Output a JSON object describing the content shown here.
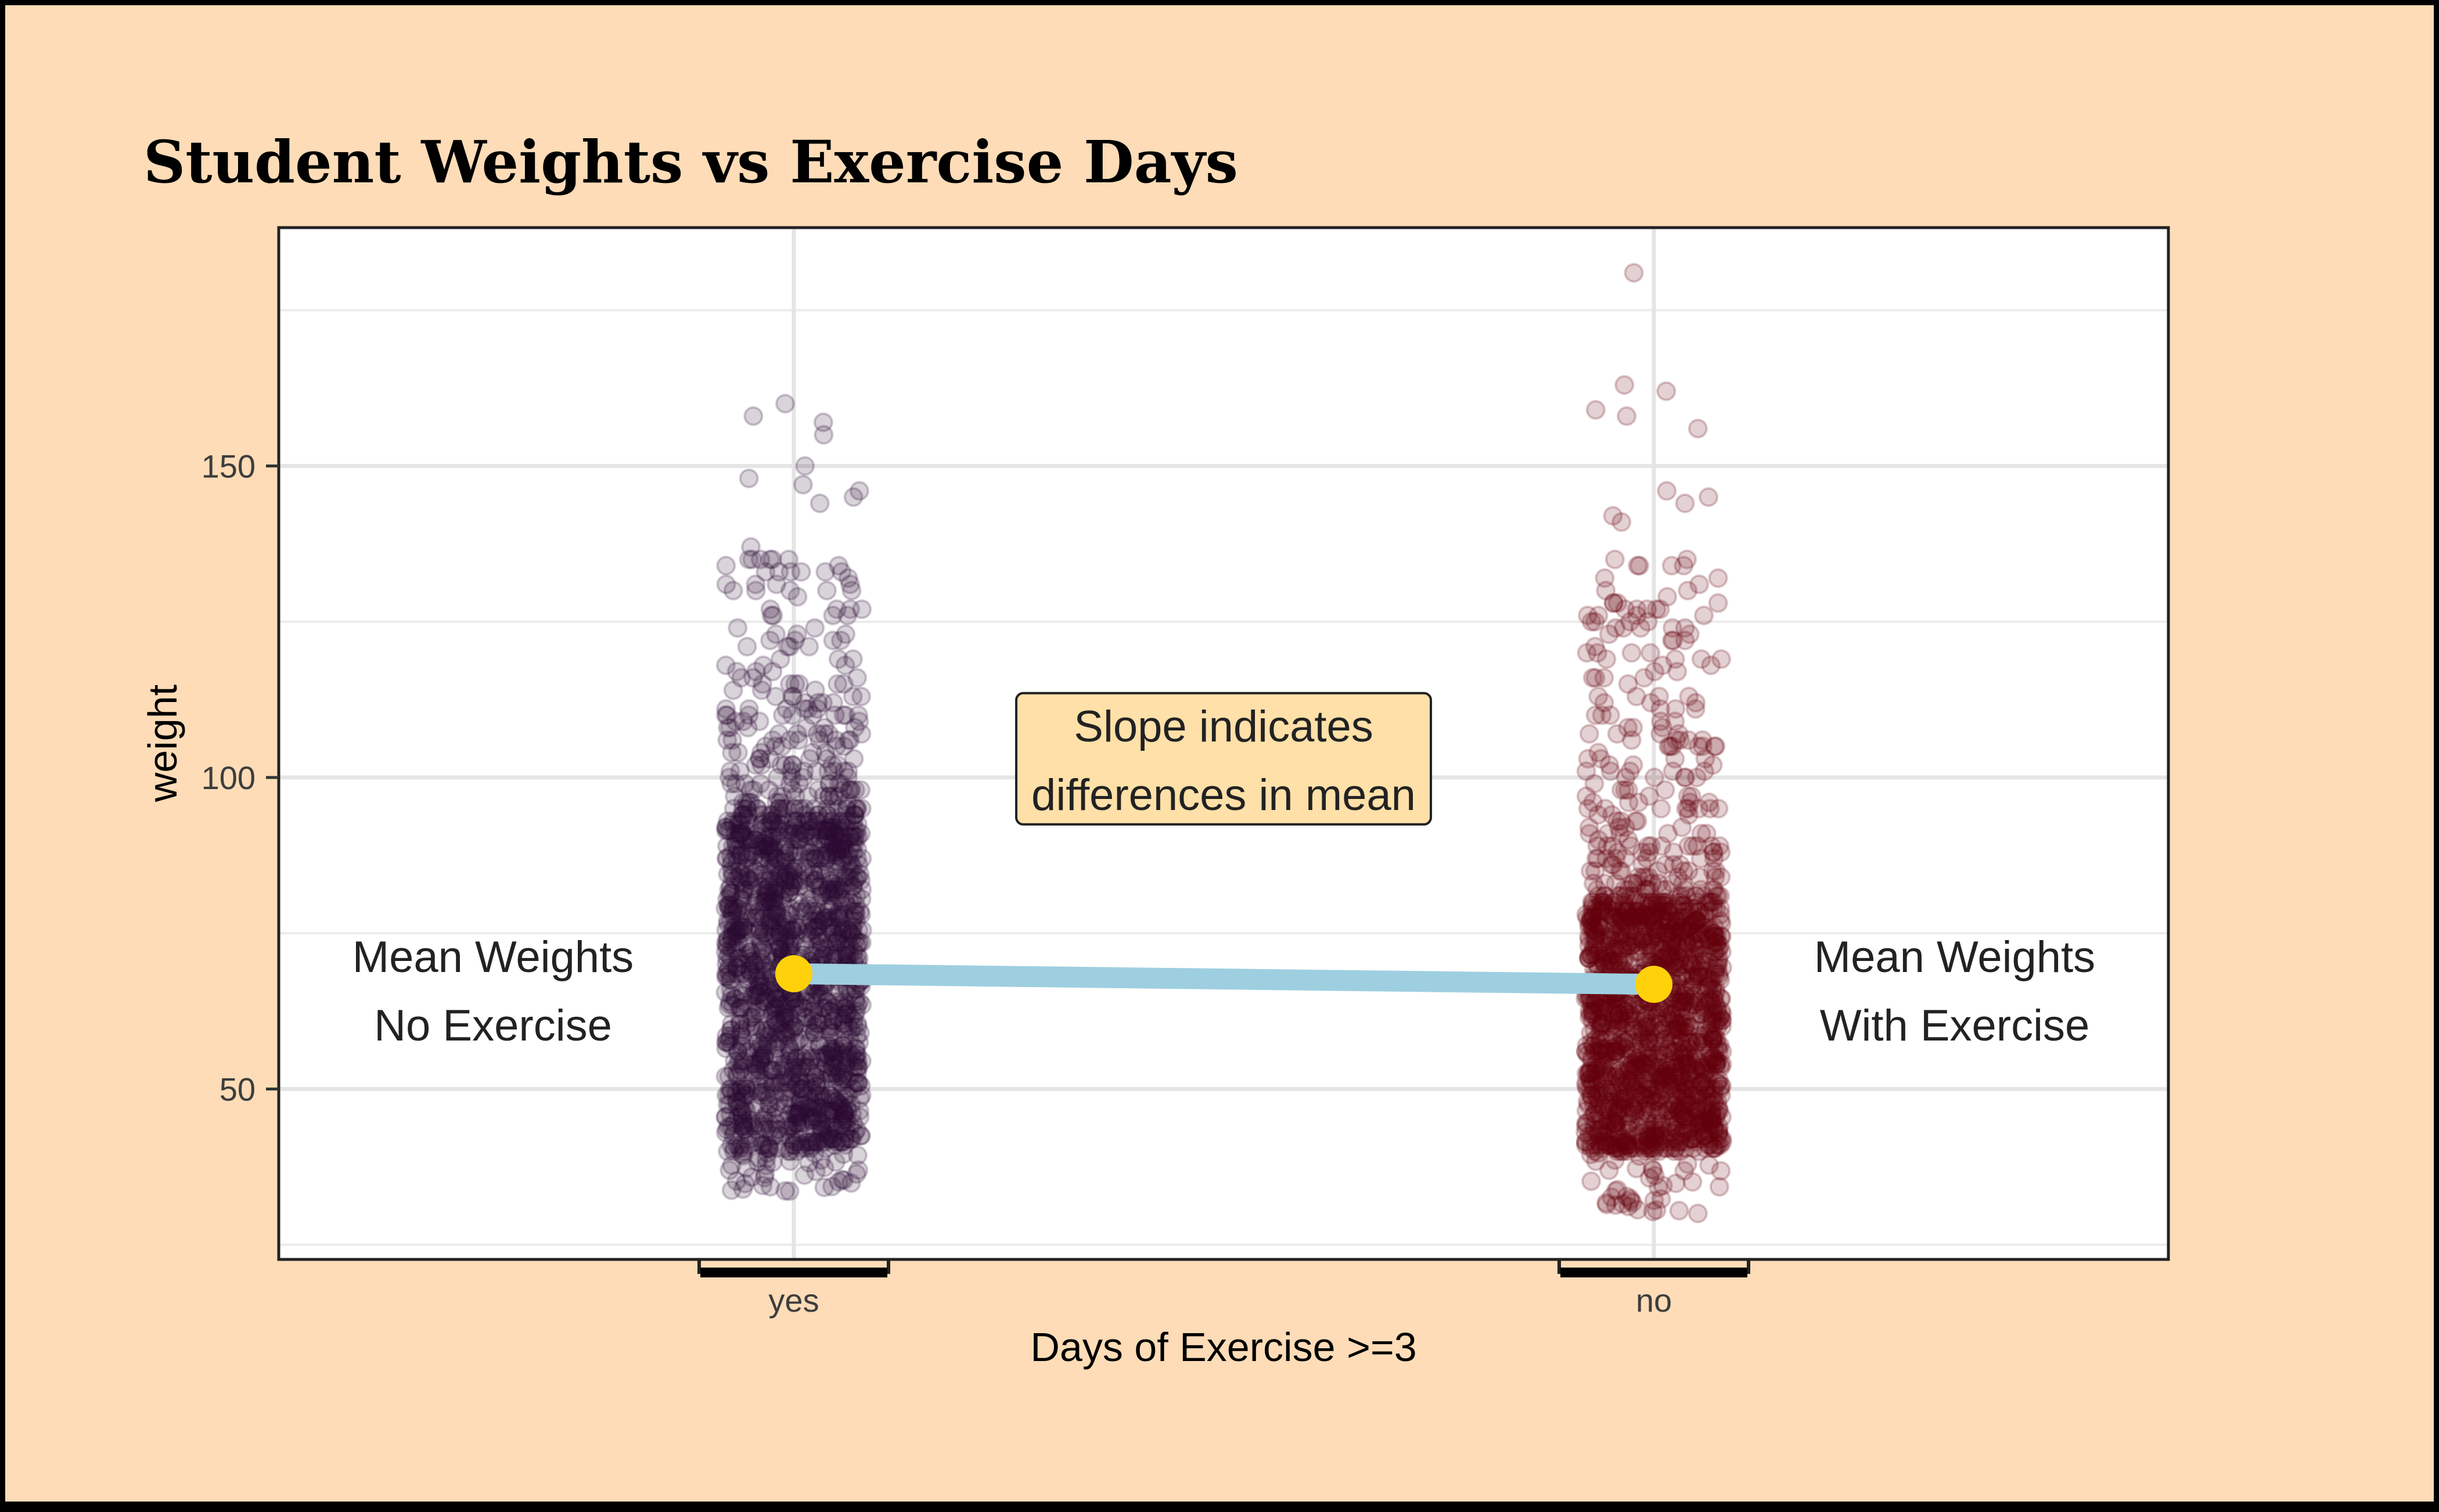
{
  "chart_data": {
    "type": "scatter",
    "title": "Student Weights vs Exercise Days",
    "xlabel": "Days of Exercise >=3",
    "ylabel": "weight",
    "categories": [
      "yes",
      "no"
    ],
    "ylim": [
      23,
      188
    ],
    "yticks": [
      50,
      100,
      150
    ],
    "minor_gridlines": [
      25,
      75,
      125,
      175
    ],
    "grid": true,
    "series": [
      {
        "name": "yes",
        "color": "#2a0a33",
        "mean": 68.5,
        "bulk_range": [
          40,
          93
        ],
        "sparse_range": [
          93,
          137
        ],
        "min": 33,
        "max": 160,
        "outliers": [
          160,
          158,
          157,
          155,
          150,
          148,
          147,
          146,
          145,
          144
        ]
      },
      {
        "name": "no",
        "color": "#66000d",
        "mean": 66.8,
        "bulk_range": [
          40,
          80
        ],
        "sparse_range": [
          80,
          136
        ],
        "min": 30,
        "max": 181,
        "outliers": [
          181,
          163,
          162,
          159,
          158,
          156,
          146,
          145,
          144,
          142,
          141
        ]
      }
    ],
    "mean_line": {
      "from": {
        "category": "yes",
        "value": 68.5
      },
      "to": {
        "category": "no",
        "value": 66.8
      },
      "line_color": "#9ecfe0",
      "point_color": "#ffd10a"
    },
    "annotations": [
      {
        "id": "slope-note",
        "lines": [
          "Slope indicates",
          "differences in mean"
        ],
        "boxed": true,
        "fill": "#fee0a8",
        "x_between": [
          0.33,
          0.66
        ],
        "value": 103
      },
      {
        "id": "left-note",
        "lines": [
          "Mean Weights",
          "No Exercise"
        ],
        "boxed": false,
        "anchor": "left-of-yes",
        "value": 66
      },
      {
        "id": "right-note",
        "lines": [
          "Mean Weights",
          "With Exercise"
        ],
        "boxed": false,
        "anchor": "right-of-no",
        "value": 66
      }
    ]
  },
  "colors": {
    "background": "#fddcb7",
    "panel": "#ffffff",
    "grid": "#e5e5e5",
    "border": "#222222"
  }
}
